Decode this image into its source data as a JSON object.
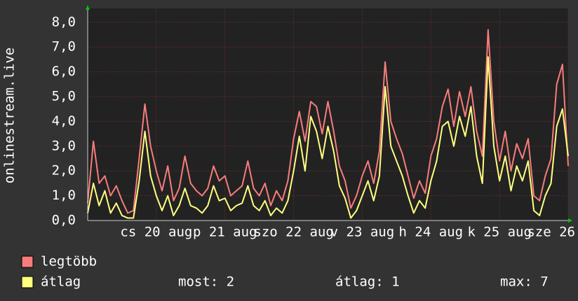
{
  "chart_data": {
    "type": "line",
    "y_label": "onlinestream.live",
    "xlim": [
      0,
      84
    ],
    "xticks": [
      {
        "value": 12,
        "label": "cs 20 aug"
      },
      {
        "value": 24,
        "label": "p 21 aug"
      },
      {
        "value": 36,
        "label": "szo 22 aug"
      },
      {
        "value": 48,
        "label": "v 23 aug"
      },
      {
        "value": 60,
        "label": "h 24 aug"
      },
      {
        "value": 72,
        "label": "k 25 aug"
      },
      {
        "value": 84,
        "label": "sze 26"
      }
    ],
    "ylim": [
      0,
      8.56
    ],
    "yticks": [
      {
        "value": 0,
        "label": "0,0"
      },
      {
        "value": 1,
        "label": "1,0"
      },
      {
        "value": 2,
        "label": "2,0"
      },
      {
        "value": 3,
        "label": "3,0"
      },
      {
        "value": 4,
        "label": "4,0"
      },
      {
        "value": 5,
        "label": "5,0"
      },
      {
        "value": 6,
        "label": "6,0"
      },
      {
        "value": 7,
        "label": "7,0"
      },
      {
        "value": 8,
        "label": "8,0"
      }
    ],
    "grid": true,
    "series": [
      {
        "name": "legtöbb",
        "color": "#f87c7c",
        "values": [
          0.7,
          3.2,
          1.5,
          1.8,
          1.0,
          1.4,
          0.8,
          0.3,
          0.4,
          2.5,
          4.7,
          3.0,
          2.0,
          1.2,
          2.2,
          0.8,
          1.3,
          2.6,
          1.5,
          1.2,
          1.0,
          1.3,
          2.2,
          1.6,
          1.8,
          1.0,
          1.2,
          1.4,
          2.4,
          1.3,
          1.0,
          1.5,
          0.6,
          1.2,
          0.8,
          1.6,
          3.3,
          4.4,
          3.2,
          4.8,
          4.6,
          3.5,
          4.8,
          3.6,
          2.2,
          1.6,
          0.5,
          1.0,
          1.8,
          2.4,
          1.5,
          2.8,
          6.4,
          4.0,
          3.3,
          2.7,
          1.8,
          0.9,
          1.6,
          1.1,
          2.6,
          3.3,
          4.6,
          5.3,
          3.8,
          5.2,
          4.2,
          5.4,
          3.6,
          2.6,
          7.7,
          4.0,
          2.4,
          3.6,
          2.0,
          3.1,
          2.5,
          3.3,
          1.0,
          0.8,
          1.8,
          2.5,
          5.5,
          6.3,
          2.2
        ]
      },
      {
        "name": "átlag",
        "color": "#ffff80",
        "values": [
          0.3,
          1.5,
          0.6,
          1.2,
          0.3,
          0.7,
          0.2,
          0.1,
          0.1,
          1.6,
          3.6,
          1.8,
          1.0,
          0.4,
          1.0,
          0.2,
          0.6,
          1.3,
          0.6,
          0.5,
          0.3,
          0.6,
          1.4,
          0.8,
          0.9,
          0.4,
          0.6,
          0.7,
          1.4,
          0.6,
          0.4,
          0.8,
          0.2,
          0.5,
          0.3,
          0.8,
          2.0,
          3.4,
          2.0,
          4.2,
          3.6,
          2.5,
          3.8,
          2.8,
          1.4,
          0.9,
          0.1,
          0.4,
          1.0,
          1.6,
          0.8,
          1.8,
          5.4,
          3.0,
          2.4,
          1.8,
          1.0,
          0.3,
          0.8,
          0.5,
          1.6,
          2.4,
          3.8,
          4.0,
          3.0,
          4.2,
          3.4,
          4.6,
          2.6,
          1.5,
          6.6,
          3.0,
          1.6,
          2.6,
          1.2,
          2.2,
          1.6,
          2.4,
          0.4,
          0.2,
          1.0,
          1.5,
          3.8,
          4.5,
          2.6
        ]
      }
    ],
    "stats": [
      "most: 2",
      "átlag: 1",
      "max: 7"
    ]
  }
}
